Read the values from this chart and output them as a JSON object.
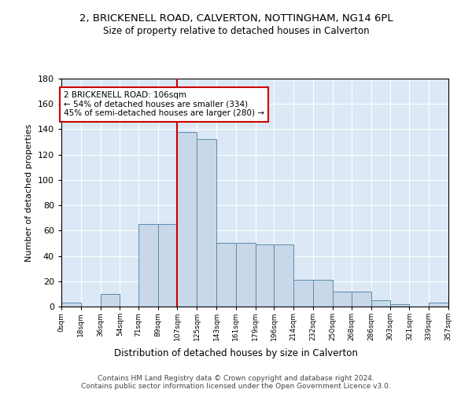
{
  "title": "2, BRICKENELL ROAD, CALVERTON, NOTTINGHAM, NG14 6PL",
  "subtitle": "Size of property relative to detached houses in Calverton",
  "xlabel": "Distribution of detached houses by size in Calverton",
  "ylabel": "Number of detached properties",
  "bin_edges": [
    0,
    18,
    36,
    54,
    71,
    89,
    107,
    125,
    143,
    161,
    179,
    196,
    214,
    232,
    250,
    268,
    286,
    303,
    321,
    339,
    357
  ],
  "bar_heights": [
    3,
    0,
    10,
    0,
    65,
    65,
    138,
    132,
    50,
    50,
    49,
    49,
    21,
    21,
    12,
    12,
    5,
    2,
    0,
    3
  ],
  "bin_labels": [
    "0sqm",
    "18sqm",
    "36sqm",
    "54sqm",
    "71sqm",
    "89sqm",
    "107sqm",
    "125sqm",
    "143sqm",
    "161sqm",
    "179sqm",
    "196sqm",
    "214sqm",
    "232sqm",
    "250sqm",
    "268sqm",
    "286sqm",
    "303sqm",
    "321sqm",
    "339sqm",
    "357sqm"
  ],
  "bar_color": "#c8d8e8",
  "bar_edge_color": "#5b8ab0",
  "vline_x": 107,
  "vline_color": "#cc0000",
  "annotation_text": "2 BRICKENELL ROAD: 106sqm\n← 54% of detached houses are smaller (334)\n45% of semi-detached houses are larger (280) →",
  "annotation_box_color": "#ffffff",
  "annotation_box_edge": "#cc0000",
  "ylim": [
    0,
    180
  ],
  "yticks": [
    0,
    20,
    40,
    60,
    80,
    100,
    120,
    140,
    160,
    180
  ],
  "bg_color": "#dce8f5",
  "footer1": "Contains HM Land Registry data © Crown copyright and database right 2024.",
  "footer2": "Contains public sector information licensed under the Open Government Licence v3.0."
}
